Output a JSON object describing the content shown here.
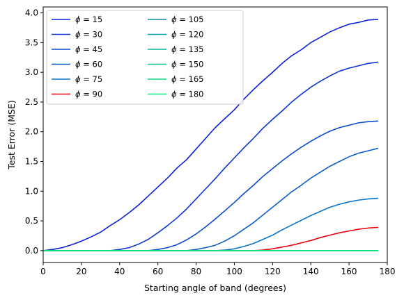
{
  "chart_data": {
    "type": "line",
    "title": "",
    "xlabel": "Starting angle of band (degrees)",
    "ylabel": "Test Error (MSE)",
    "xlim": [
      0,
      180
    ],
    "ylim": [
      -0.2,
      4.1
    ],
    "xticks": [
      0,
      20,
      40,
      60,
      80,
      100,
      120,
      140,
      160,
      180
    ],
    "yticks": [
      0.0,
      0.5,
      1.0,
      1.5,
      2.0,
      2.5,
      3.0,
      3.5,
      4.0
    ],
    "xtick_labels": [
      "0",
      "20",
      "40",
      "60",
      "80",
      "100",
      "120",
      "140",
      "160",
      "180"
    ],
    "ytick_labels": [
      "0.0",
      "0.5",
      "1.0",
      "1.5",
      "2.0",
      "2.5",
      "3.0",
      "3.5",
      "4.0"
    ],
    "grid": false,
    "legend_position": "upper-left",
    "legend_columns": 2,
    "x": [
      0,
      5,
      10,
      15,
      20,
      25,
      30,
      35,
      40,
      45,
      50,
      55,
      60,
      65,
      70,
      75,
      80,
      85,
      90,
      95,
      100,
      105,
      110,
      115,
      120,
      125,
      130,
      135,
      140,
      145,
      150,
      155,
      160,
      165,
      170,
      175
    ],
    "series": [
      {
        "name": "$\\phi = 15$",
        "legend_symbol": "ϕ",
        "legend_text": " = 15",
        "color": "#0a1fd8",
        "values": [
          0.0,
          0.02,
          0.05,
          0.1,
          0.16,
          0.23,
          0.31,
          0.42,
          0.52,
          0.64,
          0.77,
          0.92,
          1.07,
          1.22,
          1.39,
          1.53,
          1.71,
          1.89,
          2.07,
          2.22,
          2.37,
          2.55,
          2.71,
          2.86,
          3.0,
          3.15,
          3.28,
          3.38,
          3.5,
          3.59,
          3.68,
          3.75,
          3.81,
          3.84,
          3.88,
          3.89
        ]
      },
      {
        "name": "$\\phi = 30$",
        "legend_symbol": "ϕ",
        "legend_text": " = 30",
        "color": "#0a35d4",
        "values": [
          0.0,
          0.0,
          0.0,
          0.0,
          0.0,
          0.0,
          0.0,
          0.0,
          0.02,
          0.05,
          0.11,
          0.19,
          0.3,
          0.42,
          0.55,
          0.7,
          0.87,
          1.04,
          1.21,
          1.39,
          1.56,
          1.73,
          1.89,
          2.06,
          2.21,
          2.35,
          2.5,
          2.63,
          2.75,
          2.85,
          2.94,
          3.02,
          3.07,
          3.11,
          3.15,
          3.17
        ]
      },
      {
        "name": "$\\phi = 45$",
        "legend_symbol": "ϕ",
        "legend_text": " = 45",
        "color": "#0a4ad0",
        "values": [
          0.0,
          0.0,
          0.0,
          0.0,
          0.0,
          0.0,
          0.0,
          0.0,
          0.0,
          0.0,
          0.0,
          0.0,
          0.02,
          0.05,
          0.1,
          0.18,
          0.28,
          0.4,
          0.53,
          0.67,
          0.81,
          0.96,
          1.1,
          1.25,
          1.38,
          1.51,
          1.63,
          1.74,
          1.84,
          1.93,
          2.01,
          2.07,
          2.11,
          2.15,
          2.17,
          2.18
        ]
      },
      {
        "name": "$\\phi = 60$",
        "legend_symbol": "ϕ",
        "legend_text": " = 60",
        "color": "#0a5ecc",
        "values": [
          0.0,
          0.0,
          0.0,
          0.0,
          0.0,
          0.0,
          0.0,
          0.0,
          0.0,
          0.0,
          0.0,
          0.0,
          0.0,
          0.0,
          0.0,
          0.0,
          0.02,
          0.05,
          0.09,
          0.16,
          0.25,
          0.36,
          0.47,
          0.6,
          0.73,
          0.86,
          0.99,
          1.1,
          1.22,
          1.32,
          1.42,
          1.5,
          1.58,
          1.64,
          1.68,
          1.72
        ]
      },
      {
        "name": "$\\phi = 75$",
        "legend_symbol": "ϕ",
        "legend_text": " = 75",
        "color": "#0a74c8",
        "values": [
          0.0,
          0.0,
          0.0,
          0.0,
          0.0,
          0.0,
          0.0,
          0.0,
          0.0,
          0.0,
          0.0,
          0.0,
          0.0,
          0.0,
          0.0,
          0.0,
          0.0,
          0.0,
          0.0,
          0.01,
          0.03,
          0.07,
          0.12,
          0.19,
          0.26,
          0.35,
          0.43,
          0.51,
          0.59,
          0.66,
          0.73,
          0.78,
          0.82,
          0.85,
          0.87,
          0.88
        ]
      },
      {
        "name": "$\\phi = 90$",
        "legend_symbol": "ϕ",
        "legend_text": " = 90",
        "color": "#e8000b",
        "values": [
          0.0,
          0.0,
          0.0,
          0.0,
          0.0,
          0.0,
          0.0,
          0.0,
          0.0,
          0.0,
          0.0,
          0.0,
          0.0,
          0.0,
          0.0,
          0.0,
          0.0,
          0.0,
          0.0,
          0.0,
          0.0,
          0.0,
          0.0,
          0.01,
          0.03,
          0.06,
          0.09,
          0.13,
          0.17,
          0.22,
          0.26,
          0.3,
          0.33,
          0.36,
          0.38,
          0.39
        ]
      },
      {
        "name": "$\\phi = 105$",
        "legend_symbol": "ϕ",
        "legend_text": " = 105",
        "color": "#0a8a9e",
        "values": [
          0,
          0,
          0,
          0,
          0,
          0,
          0,
          0,
          0,
          0,
          0,
          0,
          0,
          0,
          0,
          0,
          0,
          0,
          0,
          0,
          0,
          0,
          0,
          0,
          0,
          0,
          0,
          0,
          0,
          0,
          0,
          0,
          0,
          0,
          0,
          0
        ]
      },
      {
        "name": "$\\phi = 120$",
        "legend_symbol": "ϕ",
        "legend_text": " = 120",
        "color": "#0a9ea8",
        "values": [
          0,
          0,
          0,
          0,
          0,
          0,
          0,
          0,
          0,
          0,
          0,
          0,
          0,
          0,
          0,
          0,
          0,
          0,
          0,
          0,
          0,
          0,
          0,
          0,
          0,
          0,
          0,
          0,
          0,
          0,
          0,
          0,
          0,
          0,
          0,
          0
        ]
      },
      {
        "name": "$\\phi = 135$",
        "legend_symbol": "ϕ",
        "legend_text": " = 135",
        "color": "#0ab49a",
        "values": [
          0,
          0,
          0,
          0,
          0,
          0,
          0,
          0,
          0,
          0,
          0,
          0,
          0,
          0,
          0,
          0,
          0,
          0,
          0,
          0,
          0,
          0,
          0,
          0,
          0,
          0,
          0,
          0,
          0,
          0,
          0,
          0,
          0,
          0,
          0,
          0
        ]
      },
      {
        "name": "$\\phi = 150$",
        "legend_symbol": "ϕ",
        "legend_text": " = 150",
        "color": "#0ac88e",
        "values": [
          0,
          0,
          0,
          0,
          0,
          0,
          0,
          0,
          0,
          0,
          0,
          0,
          0,
          0,
          0,
          0,
          0,
          0,
          0,
          0,
          0,
          0,
          0,
          0,
          0,
          0,
          0,
          0,
          0,
          0,
          0,
          0,
          0,
          0,
          0,
          0
        ]
      },
      {
        "name": "$\\phi = 165$",
        "legend_symbol": "ϕ",
        "legend_text": " = 165",
        "color": "#0ad884",
        "values": [
          0,
          0,
          0,
          0,
          0,
          0,
          0,
          0,
          0,
          0,
          0,
          0,
          0,
          0,
          0,
          0,
          0,
          0,
          0,
          0,
          0,
          0,
          0,
          0,
          0,
          0,
          0,
          0,
          0,
          0,
          0,
          0,
          0,
          0,
          0,
          0
        ]
      },
      {
        "name": "$\\phi = 180$",
        "legend_symbol": "ϕ",
        "legend_text": " = 180",
        "color": "#0ae87a",
        "values": [
          0,
          0,
          0,
          0,
          0,
          0,
          0,
          0,
          0,
          0,
          0,
          0,
          0,
          0,
          0,
          0,
          0,
          0,
          0,
          0,
          0,
          0,
          0,
          0,
          0,
          0,
          0,
          0,
          0,
          0,
          0,
          0,
          0,
          0,
          0,
          0
        ]
      }
    ]
  }
}
